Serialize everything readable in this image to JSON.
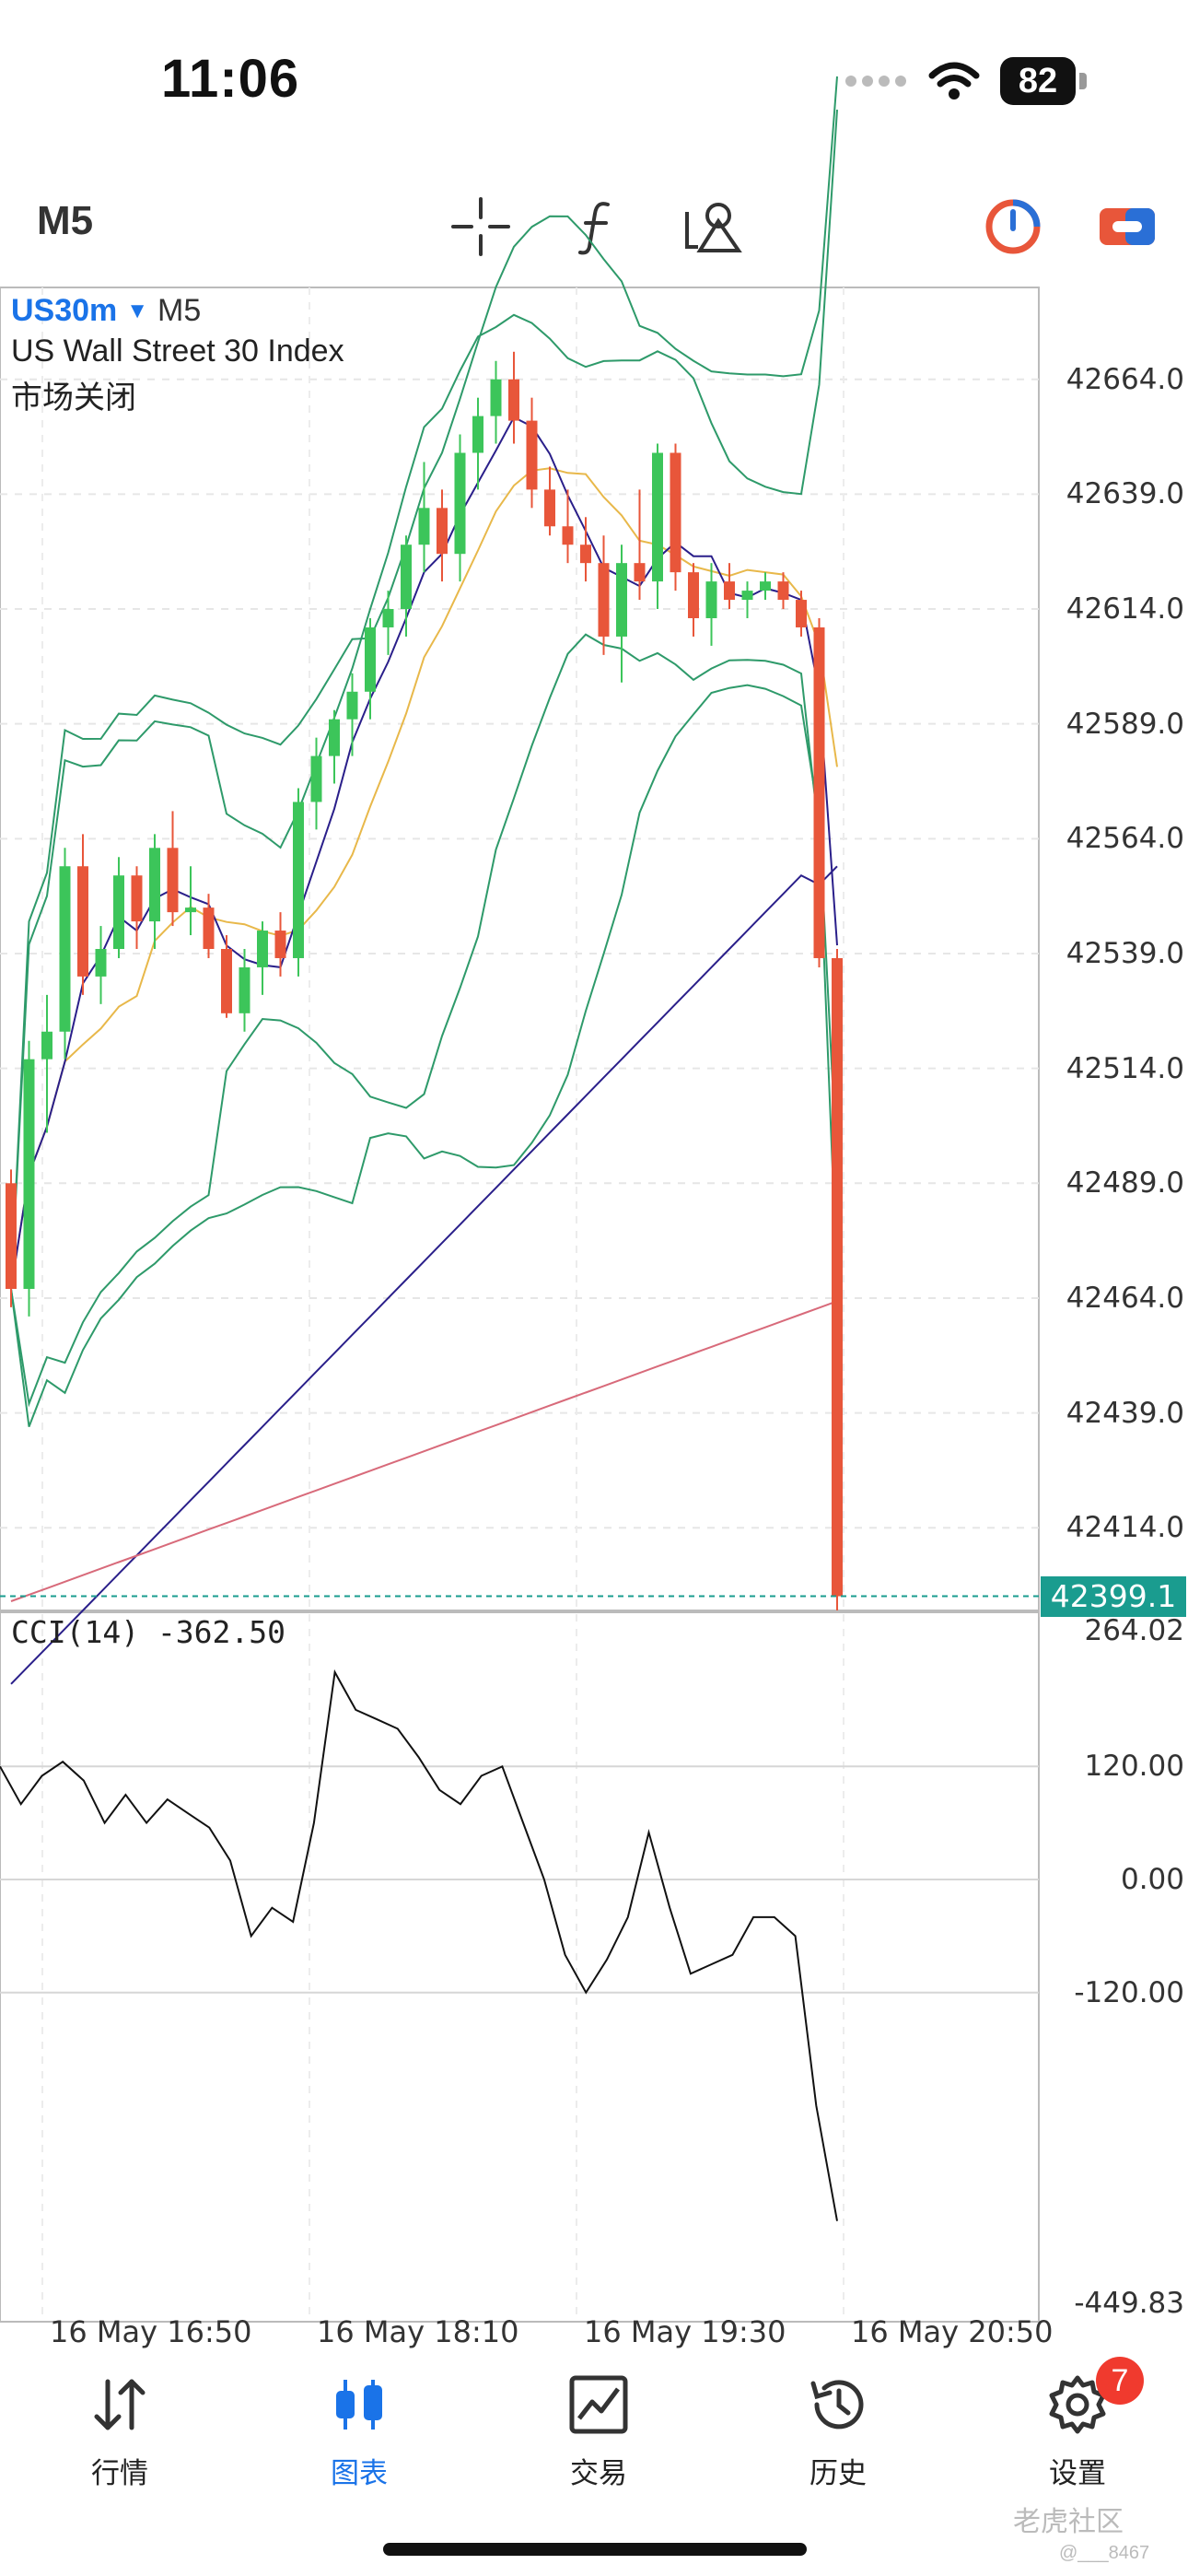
{
  "status_bar": {
    "time": "11:06",
    "battery": "82",
    "icons": [
      "signal-dots-icon",
      "wifi-icon",
      "battery-icon"
    ]
  },
  "toolbar": {
    "timeframe": "M5",
    "icons": [
      "crosshair-icon",
      "indicator-f-icon",
      "objects-icon",
      "one-click-trading-icon",
      "account-switch-icon"
    ]
  },
  "chart": {
    "symbol": "US30m",
    "timeframe": "M5",
    "description": "US Wall Street 30 Index",
    "market_status": "市场关闭",
    "current_price": "42399.1",
    "price_axis": [
      "42664.0",
      "42639.0",
      "42614.0",
      "42589.0",
      "42564.0",
      "42539.0",
      "42514.0",
      "42489.0",
      "42464.0",
      "42439.0",
      "42414.0"
    ],
    "time_axis": [
      "16 May 16:50",
      "16 May 18:10",
      "16 May 19:30",
      "16 May 20:50"
    ],
    "cci_label": "CCI(14) -362.50",
    "cci_axis": [
      "264.02",
      "120.00",
      "0.00",
      "-120.00",
      "-449.83"
    ],
    "colors": {
      "up": "#3cc55a",
      "down": "#e8563a",
      "bollinger": "#2e9a6a",
      "ma_fast": "#2a1f8a",
      "ma_slow_yellow": "#e8b84a",
      "ma_long_pink": "#d86a7a",
      "price_line": "#1a9c8f"
    }
  },
  "chart_data": {
    "type": "candlestick",
    "series": [
      {
        "name": "candles",
        "ohlc": [
          [
            42489,
            42492,
            42462,
            42466
          ],
          [
            42466,
            42520,
            42460,
            42516
          ],
          [
            42516,
            42530,
            42500,
            42522
          ],
          [
            42522,
            42562,
            42516,
            42558
          ],
          [
            42558,
            42565,
            42530,
            42534
          ],
          [
            42534,
            42545,
            42528,
            42540
          ],
          [
            42540,
            42560,
            42538,
            42556
          ],
          [
            42556,
            42558,
            42540,
            42546
          ],
          [
            42546,
            42565,
            42540,
            42562
          ],
          [
            42562,
            42570,
            42545,
            42548
          ],
          [
            42548,
            42558,
            42543,
            42549
          ],
          [
            42549,
            42552,
            42538,
            42540
          ],
          [
            42540,
            42543,
            42525,
            42526
          ],
          [
            42526,
            42540,
            42522,
            42536
          ],
          [
            42536,
            42546,
            42530,
            42544
          ],
          [
            42544,
            42548,
            42534,
            42538
          ],
          [
            42538,
            42575,
            42534,
            42572
          ],
          [
            42572,
            42586,
            42566,
            42582
          ],
          [
            42582,
            42592,
            42576,
            42590
          ],
          [
            42590,
            42600,
            42582,
            42596
          ],
          [
            42596,
            42612,
            42590,
            42610
          ],
          [
            42610,
            42618,
            42604,
            42614
          ],
          [
            42614,
            42630,
            42608,
            42628
          ],
          [
            42628,
            42646,
            42622,
            42636
          ],
          [
            42636,
            42640,
            42620,
            42626
          ],
          [
            42626,
            42652,
            42620,
            42648
          ],
          [
            42648,
            42660,
            42640,
            42656
          ],
          [
            42656,
            42668,
            42650,
            42664
          ],
          [
            42664,
            42670,
            42650,
            42655
          ],
          [
            42655,
            42660,
            42636,
            42640
          ],
          [
            42640,
            42645,
            42630,
            42632
          ],
          [
            42632,
            42640,
            42624,
            42628
          ],
          [
            42628,
            42634,
            42620,
            42624
          ],
          [
            42624,
            42630,
            42604,
            42608
          ],
          [
            42608,
            42628,
            42598,
            42624
          ],
          [
            42624,
            42640,
            42616,
            42620
          ],
          [
            42620,
            42650,
            42614,
            42648
          ],
          [
            42648,
            42650,
            42618,
            42622
          ],
          [
            42622,
            42624,
            42608,
            42612
          ],
          [
            42612,
            42624,
            42606,
            42620
          ],
          [
            42620,
            42624,
            42614,
            42616
          ],
          [
            42616,
            42620,
            42612,
            42618
          ],
          [
            42618,
            42622,
            42616,
            42620
          ],
          [
            42620,
            42622,
            42614,
            42616
          ],
          [
            42616,
            42618,
            42608,
            42610
          ],
          [
            42610,
            42612,
            42536,
            42538
          ],
          [
            42538,
            42540,
            42396,
            42399.1
          ]
        ]
      }
    ],
    "x_labels": [
      "16 May 16:50",
      "16 May 18:10",
      "16 May 19:30",
      "16 May 20:50"
    ],
    "ylim": [
      42396,
      42684
    ],
    "cci": {
      "label": "CCI(14) -362.50",
      "values": [
        120,
        80,
        110,
        125,
        105,
        60,
        90,
        60,
        85,
        70,
        55,
        20,
        -60,
        -30,
        -45,
        60,
        220,
        180,
        170,
        160,
        130,
        95,
        80,
        110,
        120,
        60,
        0,
        -80,
        -120,
        -85,
        -40,
        50,
        -30,
        -100,
        -90,
        -80,
        -40,
        -40,
        -60,
        -240,
        -362.5
      ],
      "ylim": [
        -449.83,
        264.02
      ],
      "levels": [
        120,
        0,
        -120
      ]
    }
  },
  "bottom_nav": {
    "items": [
      {
        "label": "行情",
        "icon": "quotes-arrows-icon"
      },
      {
        "label": "图表",
        "icon": "candlestick-chart-icon"
      },
      {
        "label": "交易",
        "icon": "trade-chart-icon"
      },
      {
        "label": "历史",
        "icon": "history-clock-icon"
      },
      {
        "label": "设置",
        "icon": "settings-gear-icon"
      }
    ],
    "settings_badge": "7"
  },
  "watermark": {
    "text": "老虎社区",
    "user": "@___8467"
  }
}
